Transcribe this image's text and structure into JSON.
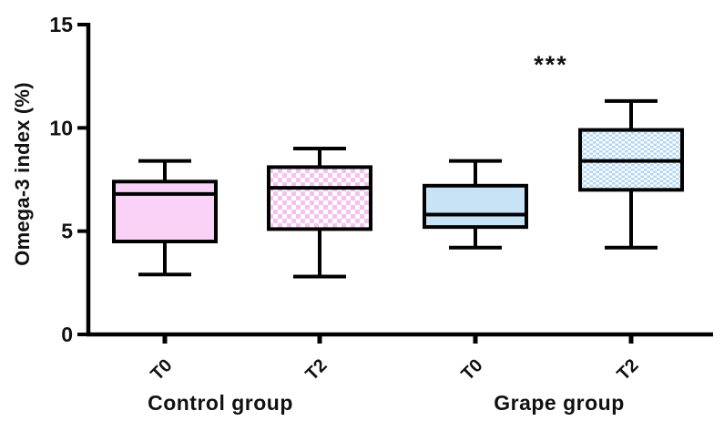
{
  "chart_data": {
    "type": "boxplot",
    "title": "",
    "ylabel": "Omega-3 index (%)",
    "xlabel": "",
    "ylim": [
      0,
      15
    ],
    "yticks": [
      0,
      5,
      10,
      15
    ],
    "categories": [
      "T0",
      "T2",
      "T0",
      "T2"
    ],
    "group_labels": [
      "Control group",
      "Grape group"
    ],
    "grid": "off",
    "boxes": [
      {
        "group": "Control group",
        "timepoint": "T0",
        "whisker_low": 2.9,
        "q1": 4.5,
        "median": 6.8,
        "q3": 7.4,
        "whisker_high": 8.4,
        "fill_style": "solid",
        "fill_color": "#f9d2f7"
      },
      {
        "group": "Control group",
        "timepoint": "T2",
        "whisker_low": 2.8,
        "q1": 5.1,
        "median": 7.1,
        "q3": 8.1,
        "whisker_high": 9.0,
        "fill_style": "checker",
        "fill_color": "#f3c2ee"
      },
      {
        "group": "Grape group",
        "timepoint": "T0",
        "whisker_low": 4.2,
        "q1": 5.2,
        "median": 5.8,
        "q3": 7.2,
        "whisker_high": 8.4,
        "fill_style": "solid",
        "fill_color": "#c8e3f6"
      },
      {
        "group": "Grape group",
        "timepoint": "T2",
        "whisker_low": 4.2,
        "q1": 7.0,
        "median": 8.4,
        "q3": 9.9,
        "whisker_high": 11.3,
        "fill_style": "checker-fine",
        "fill_color": "#b0d5f0"
      }
    ],
    "annotations": [
      {
        "text": "***",
        "box_index": 3,
        "meaning": "significance-marker"
      }
    ],
    "axis_color": "#000000",
    "text_color": "#111111"
  }
}
